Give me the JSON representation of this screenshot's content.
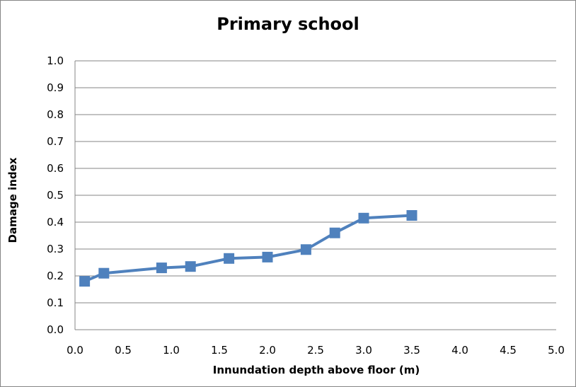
{
  "chart_data": {
    "type": "line",
    "title": "Primary school",
    "xlabel": "Innundation depth above floor (m)",
    "ylabel": "Damage index",
    "xlim": [
      0.0,
      5.0
    ],
    "ylim": [
      0.0,
      1.0
    ],
    "xticks": [
      "0.0",
      "0.5",
      "1.0",
      "1.5",
      "2.0",
      "2.5",
      "3.0",
      "3.5",
      "4.0",
      "4.5",
      "5.0"
    ],
    "yticks": [
      "0.0",
      "0.1",
      "0.2",
      "0.3",
      "0.4",
      "0.5",
      "0.6",
      "0.7",
      "0.8",
      "0.9",
      "1.0"
    ],
    "grid": "horizontal",
    "legend": "none",
    "series": [
      {
        "color": "#4F81BD",
        "marker": "square",
        "x": [
          0.1,
          0.3,
          0.9,
          1.2,
          1.6,
          2.0,
          2.4,
          2.7,
          3.0,
          3.5
        ],
        "y": [
          0.18,
          0.21,
          0.23,
          0.235,
          0.265,
          0.27,
          0.298,
          0.36,
          0.415,
          0.425
        ]
      }
    ]
  }
}
